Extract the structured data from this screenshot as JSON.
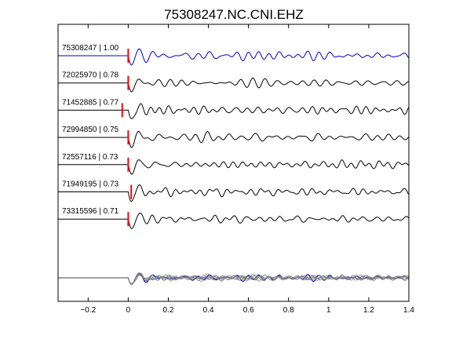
{
  "chart_data": {
    "type": "line",
    "title": "75308247.NC.CNI.EHZ",
    "xlabel": "",
    "ylabel": "",
    "xlim": [
      -0.35,
      1.4
    ],
    "xticks": [
      -0.2,
      0,
      0.2,
      0.4,
      0.6,
      0.8,
      1,
      1.2,
      1.4
    ],
    "xtick_labels": [
      "−0.2",
      "0",
      "0.2",
      "0.4",
      "0.6",
      "0.8",
      "1",
      "1.2",
      "1.4"
    ],
    "grid": false,
    "colors": {
      "reference": "#0000cc",
      "trace": "#000000",
      "pick": "#ff0000",
      "stack": "#808080"
    },
    "series": [
      {
        "name": "75308247 | 1.00",
        "pick_time": 0.0,
        "seed": 1,
        "color": "#0000cc"
      },
      {
        "name": "72025970 | 0.78",
        "pick_time": 0.0,
        "seed": 2,
        "color": "#000000"
      },
      {
        "name": "71452885 | 0.77",
        "pick_time": -0.03,
        "seed": 3,
        "color": "#000000"
      },
      {
        "name": "72994850 | 0.75",
        "pick_time": 0.0,
        "seed": 4,
        "color": "#000000"
      },
      {
        "name": "72557116 | 0.73",
        "pick_time": 0.0,
        "seed": 5,
        "color": "#000000"
      },
      {
        "name": "71949195 | 0.73",
        "pick_time": 0.015,
        "seed": 6,
        "color": "#000000"
      },
      {
        "name": "73315596 | 0.71",
        "pick_time": 0.0,
        "seed": 7,
        "color": "#000000"
      }
    ]
  }
}
